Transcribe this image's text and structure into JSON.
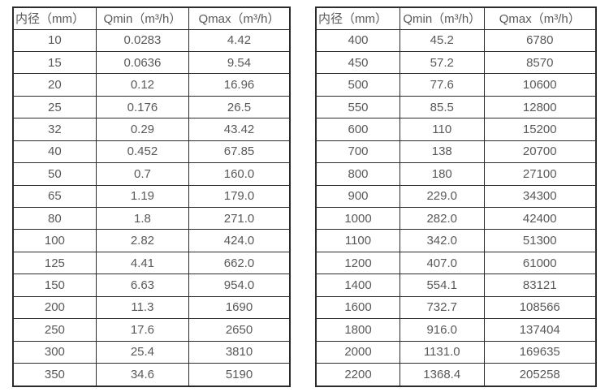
{
  "style": {
    "background": "#ffffff",
    "border_color": "#2b2b2b",
    "text_color": "#595959"
  },
  "tables": [
    {
      "id": "small-diameters",
      "columns": [
        "内径（mm）",
        "Qmin（m³/h）",
        "Qmax（m³/h）"
      ],
      "rows": [
        [
          "10",
          "0.0283",
          "4.42"
        ],
        [
          "15",
          "0.0636",
          "9.54"
        ],
        [
          "20",
          "0.12",
          "16.96"
        ],
        [
          "25",
          "0.176",
          "26.5"
        ],
        [
          "32",
          "0.29",
          "43.42"
        ],
        [
          "40",
          "0.452",
          "67.85"
        ],
        [
          "50",
          "0.7",
          "160.0"
        ],
        [
          "65",
          "1.19",
          "179.0"
        ],
        [
          "80",
          "1.8",
          "271.0"
        ],
        [
          "100",
          "2.82",
          "424.0"
        ],
        [
          "125",
          "4.41",
          "662.0"
        ],
        [
          "150",
          "6.63",
          "954.0"
        ],
        [
          "200",
          "11.3",
          "1690"
        ],
        [
          "250",
          "17.6",
          "2650"
        ],
        [
          "300",
          "25.4",
          "3810"
        ],
        [
          "350",
          "34.6",
          "5190"
        ]
      ]
    },
    {
      "id": "large-diameters",
      "columns": [
        "内径（mm）",
        "Qmin（m³/h）",
        "Qmax（m³/h）"
      ],
      "rows": [
        [
          "400",
          "45.2",
          "6780"
        ],
        [
          "450",
          "57.2",
          "8570"
        ],
        [
          "500",
          "77.6",
          "10600"
        ],
        [
          "550",
          "85.5",
          "12800"
        ],
        [
          "600",
          "110",
          "15200"
        ],
        [
          "700",
          "138",
          "20700"
        ],
        [
          "800",
          "180",
          "27100"
        ],
        [
          "900",
          "229.0",
          "34300"
        ],
        [
          "1000",
          "282.0",
          "42400"
        ],
        [
          "1100",
          "342.0",
          "51300"
        ],
        [
          "1200",
          "407.0",
          "61000"
        ],
        [
          "1400",
          "554.1",
          "83121"
        ],
        [
          "1600",
          "732.7",
          "108566"
        ],
        [
          "1800",
          "916.0",
          "137404"
        ],
        [
          "2000",
          "1131.0",
          "169635"
        ],
        [
          "2200",
          "1368.4",
          "205258"
        ]
      ]
    }
  ]
}
